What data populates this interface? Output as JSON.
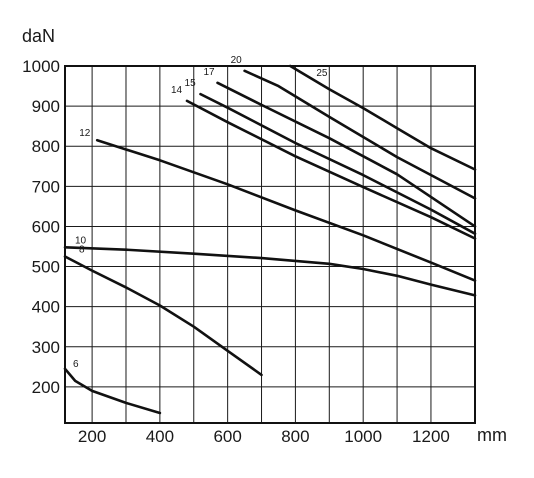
{
  "chart_data": {
    "type": "line",
    "xlabel": "mm",
    "ylabel": "daN",
    "xlim": [
      120,
      1330
    ],
    "ylim": [
      110,
      1000
    ],
    "grid": true,
    "x_ticks": [
      {
        "value": 200,
        "label": "200"
      },
      {
        "value": 400,
        "label": "400"
      },
      {
        "value": 600,
        "label": "600"
      },
      {
        "value": 800,
        "label": "800"
      },
      {
        "value": 1000,
        "label": "1000"
      },
      {
        "value": 1200,
        "label": "1200"
      }
    ],
    "x_gridlines": [
      120,
      200,
      300,
      400,
      500,
      600,
      700,
      800,
      900,
      1000,
      1100,
      1200,
      1330
    ],
    "y_ticks": [
      {
        "value": 200,
        "label": "200"
      },
      {
        "value": 300,
        "label": "300"
      },
      {
        "value": 400,
        "label": "400"
      },
      {
        "value": 500,
        "label": "500"
      },
      {
        "value": 600,
        "label": "600"
      },
      {
        "value": 700,
        "label": "700"
      },
      {
        "value": 800,
        "label": "800"
      },
      {
        "value": 900,
        "label": "900"
      },
      {
        "value": 1000,
        "label": "1000"
      }
    ],
    "series": [
      {
        "name": "6",
        "points": [
          [
            120,
            245
          ],
          [
            150,
            215
          ],
          [
            200,
            190
          ],
          [
            300,
            160
          ],
          [
            400,
            135
          ]
        ]
      },
      {
        "name": "8",
        "points": [
          [
            120,
            525
          ],
          [
            200,
            490
          ],
          [
            300,
            448
          ],
          [
            400,
            403
          ],
          [
            500,
            350
          ],
          [
            600,
            290
          ],
          [
            700,
            230
          ]
        ]
      },
      {
        "name": "10",
        "points": [
          [
            120,
            548
          ],
          [
            300,
            542
          ],
          [
            500,
            532
          ],
          [
            700,
            521
          ],
          [
            900,
            507
          ],
          [
            1000,
            494
          ],
          [
            1100,
            477
          ],
          [
            1200,
            455
          ],
          [
            1330,
            428
          ]
        ]
      },
      {
        "name": "12",
        "points": [
          [
            215,
            815
          ],
          [
            400,
            765
          ],
          [
            600,
            705
          ],
          [
            800,
            640
          ],
          [
            1000,
            578
          ],
          [
            1200,
            510
          ],
          [
            1330,
            465
          ]
        ]
      },
      {
        "name": "14",
        "points": [
          [
            480,
            913
          ],
          [
            600,
            860
          ],
          [
            800,
            775
          ],
          [
            1000,
            698
          ],
          [
            1200,
            623
          ],
          [
            1330,
            570
          ]
        ]
      },
      {
        "name": "15",
        "points": [
          [
            520,
            930
          ],
          [
            600,
            896
          ],
          [
            800,
            808
          ],
          [
            1000,
            728
          ],
          [
            1200,
            642
          ],
          [
            1330,
            582
          ]
        ]
      },
      {
        "name": "17",
        "points": [
          [
            570,
            958
          ],
          [
            700,
            903
          ],
          [
            900,
            820
          ],
          [
            1100,
            730
          ],
          [
            1330,
            600
          ]
        ]
      },
      {
        "name": "20",
        "points": [
          [
            650,
            988
          ],
          [
            750,
            950
          ],
          [
            900,
            873
          ],
          [
            1100,
            773
          ],
          [
            1330,
            670
          ]
        ]
      },
      {
        "name": "25",
        "points": [
          [
            785,
            1000
          ],
          [
            900,
            942
          ],
          [
            1000,
            895
          ],
          [
            1100,
            845
          ],
          [
            1200,
            795
          ],
          [
            1330,
            742
          ]
        ]
      }
    ]
  }
}
